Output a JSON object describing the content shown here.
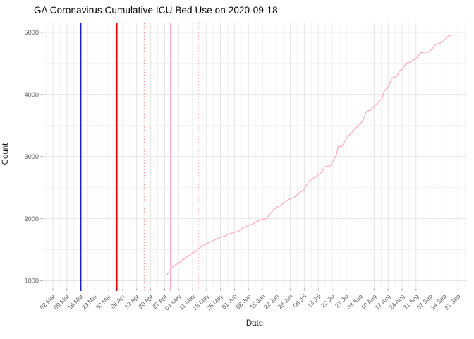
{
  "chart_data": {
    "type": "line",
    "title": "GA Coronavirus Cumulative ICU Bed Use on 2020-09-18",
    "xlabel": "Date",
    "ylabel": "Count",
    "legend": "none",
    "grid": "on",
    "ylim": [
      1000,
      5000
    ],
    "y_ticks": [
      1000,
      2000,
      3000,
      4000,
      5000
    ],
    "y_minor_ticks": [
      1500,
      2500,
      3500,
      4500
    ],
    "x_tick_labels": [
      "02 Mar",
      "09 Mar",
      "16 Mar",
      "23 Mar",
      "30 Mar",
      "06 Apr",
      "13 Apr",
      "20 Apr",
      "27 Apr",
      "04 May",
      "11 May",
      "18 May",
      "25 May",
      "01 Jun",
      "08 Jun",
      "15 Jun",
      "22 Jun",
      "29 Jun",
      "06 Jul",
      "13 Jul",
      "20 Jul",
      "27 Jul",
      "03 Aug",
      "10 Aug",
      "17 Aug",
      "24 Aug",
      "31 Aug",
      "07 Sep",
      "14 Sep",
      "21 Sep"
    ],
    "x_tick_start_date": "2020-03-02",
    "x_tick_interval_days": 7,
    "vlines": [
      {
        "name": "blue-solid-event-line",
        "date": "2020-03-16",
        "style": "solid",
        "color": "#1A1ACF",
        "width": 1.6
      },
      {
        "name": "red-solid-event-line",
        "date": "2020-04-03",
        "style": "solid",
        "color": "#E00000",
        "width": 2.0
      },
      {
        "name": "red-dotted-event-line",
        "date": "2020-04-17",
        "style": "dotted",
        "color": "#E00000",
        "width": 1.1
      },
      {
        "name": "pink-solid-event-line",
        "date": "2020-04-30",
        "style": "solid",
        "color": "#FFB0C8",
        "width": 1.8
      },
      {
        "name": "pink-dotted-event-line",
        "date": "2020-05-14",
        "style": "dotted",
        "color": "#FFB0C8",
        "width": 1.1
      }
    ],
    "series": [
      {
        "name": "cumulative-icu-bed-use",
        "color": "#F8AEC2",
        "points": [
          [
            "2020-04-28",
            1090
          ],
          [
            "2020-04-29",
            1140
          ],
          [
            "2020-04-30",
            1190
          ],
          [
            "2020-05-01",
            1220
          ],
          [
            "2020-05-02",
            1245
          ],
          [
            "2020-05-03",
            1265
          ],
          [
            "2020-05-04",
            1290
          ],
          [
            "2020-05-05",
            1300
          ],
          [
            "2020-05-06",
            1340
          ],
          [
            "2020-05-07",
            1350
          ],
          [
            "2020-05-08",
            1380
          ],
          [
            "2020-05-09",
            1400
          ],
          [
            "2020-05-11",
            1450
          ],
          [
            "2020-05-12",
            1460
          ],
          [
            "2020-05-14",
            1520
          ],
          [
            "2020-05-16",
            1560
          ],
          [
            "2020-05-18",
            1600
          ],
          [
            "2020-05-20",
            1625
          ],
          [
            "2020-05-22",
            1655
          ],
          [
            "2020-05-25",
            1700
          ],
          [
            "2020-05-27",
            1715
          ],
          [
            "2020-05-29",
            1750
          ],
          [
            "2020-06-01",
            1780
          ],
          [
            "2020-06-03",
            1795
          ],
          [
            "2020-06-05",
            1850
          ],
          [
            "2020-06-08",
            1890
          ],
          [
            "2020-06-10",
            1910
          ],
          [
            "2020-06-12",
            1950
          ],
          [
            "2020-06-15",
            1990
          ],
          [
            "2020-06-17",
            2000
          ],
          [
            "2020-06-19",
            2090
          ],
          [
            "2020-06-22",
            2180
          ],
          [
            "2020-06-24",
            2210
          ],
          [
            "2020-06-26",
            2270
          ],
          [
            "2020-06-29",
            2320
          ],
          [
            "2020-07-01",
            2340
          ],
          [
            "2020-07-03",
            2400
          ],
          [
            "2020-07-06",
            2470
          ],
          [
            "2020-07-08",
            2590
          ],
          [
            "2020-07-10",
            2640
          ],
          [
            "2020-07-12",
            2680
          ],
          [
            "2020-07-14",
            2730
          ],
          [
            "2020-07-15",
            2760
          ],
          [
            "2020-07-16",
            2833
          ],
          [
            "2020-07-17",
            2840
          ],
          [
            "2020-07-19",
            2850
          ],
          [
            "2020-07-20",
            2900
          ],
          [
            "2020-07-22",
            3020
          ],
          [
            "2020-07-23",
            3160
          ],
          [
            "2020-07-25",
            3170
          ],
          [
            "2020-07-27",
            3290
          ],
          [
            "2020-07-29",
            3360
          ],
          [
            "2020-07-31",
            3430
          ],
          [
            "2020-08-02",
            3500
          ],
          [
            "2020-08-04",
            3560
          ],
          [
            "2020-08-05",
            3630
          ],
          [
            "2020-08-06",
            3720
          ],
          [
            "2020-08-07",
            3740
          ],
          [
            "2020-08-08",
            3740
          ],
          [
            "2020-08-10",
            3810
          ],
          [
            "2020-08-12",
            3870
          ],
          [
            "2020-08-14",
            3930
          ],
          [
            "2020-08-15",
            4050
          ],
          [
            "2020-08-17",
            4120
          ],
          [
            "2020-08-19",
            4270
          ],
          [
            "2020-08-20",
            4280
          ],
          [
            "2020-08-21",
            4280
          ],
          [
            "2020-08-23",
            4390
          ],
          [
            "2020-08-24",
            4400
          ],
          [
            "2020-08-26",
            4500
          ],
          [
            "2020-08-28",
            4520
          ],
          [
            "2020-08-30",
            4560
          ],
          [
            "2020-09-01",
            4610
          ],
          [
            "2020-09-02",
            4670
          ],
          [
            "2020-09-04",
            4680
          ],
          [
            "2020-09-06",
            4680
          ],
          [
            "2020-09-08",
            4730
          ],
          [
            "2020-09-09",
            4780
          ],
          [
            "2020-09-11",
            4820
          ],
          [
            "2020-09-13",
            4840
          ],
          [
            "2020-09-15",
            4900
          ],
          [
            "2020-09-16",
            4935
          ],
          [
            "2020-09-18",
            4960
          ]
        ]
      }
    ],
    "colors": {
      "background": "#FFFFFF",
      "major_grid": "#E4E4E4",
      "minor_grid": "#F1F1F1",
      "tick_mark": "#9A9A9A",
      "tick_label": "#5F5F5F",
      "axis_title": "#1A1A1A",
      "title": "#000000"
    }
  }
}
